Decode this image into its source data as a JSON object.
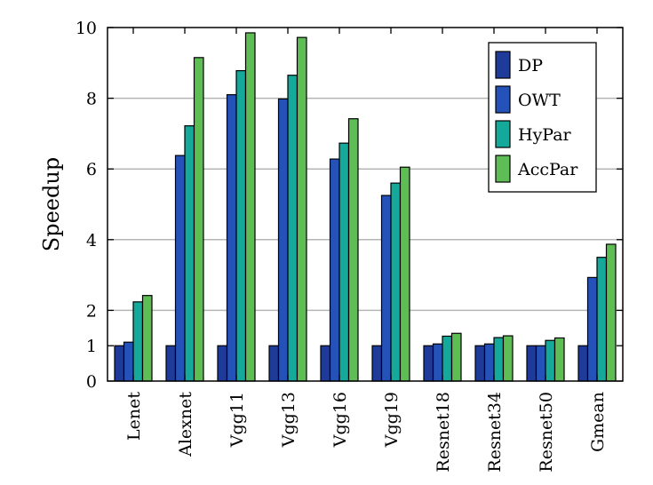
{
  "chart_data": {
    "type": "bar",
    "ylabel": "Speedup",
    "xlabel": "",
    "ylim": [
      0,
      10
    ],
    "yticks": [
      0,
      1,
      2,
      4,
      6,
      8,
      10
    ],
    "gridlines": [
      2,
      4,
      6,
      8
    ],
    "grid": true,
    "legend_position": "top-right",
    "categories": [
      "Lenet",
      "Alexnet",
      "Vgg11",
      "Vgg13",
      "Vgg16",
      "Vgg19",
      "Resnet18",
      "Resnet34",
      "Resnet50",
      "Gmean"
    ],
    "series": [
      {
        "name": "DP",
        "color": "#1f3b9a",
        "values": [
          1.0,
          1.0,
          1.0,
          1.0,
          1.0,
          1.0,
          1.0,
          1.0,
          1.0,
          1.0
        ]
      },
      {
        "name": "OWT",
        "color": "#2552b8",
        "values": [
          1.1,
          6.38,
          8.1,
          7.98,
          6.28,
          5.25,
          1.05,
          1.05,
          1.0,
          2.93
        ]
      },
      {
        "name": "HyPar",
        "color": "#14a99a",
        "values": [
          2.24,
          7.22,
          8.78,
          8.65,
          6.73,
          5.6,
          1.27,
          1.23,
          1.15,
          3.5
        ]
      },
      {
        "name": "AccPar",
        "color": "#5ebd55",
        "values": [
          2.42,
          9.15,
          9.85,
          9.72,
          7.42,
          6.05,
          1.35,
          1.28,
          1.22,
          3.87
        ]
      }
    ]
  }
}
